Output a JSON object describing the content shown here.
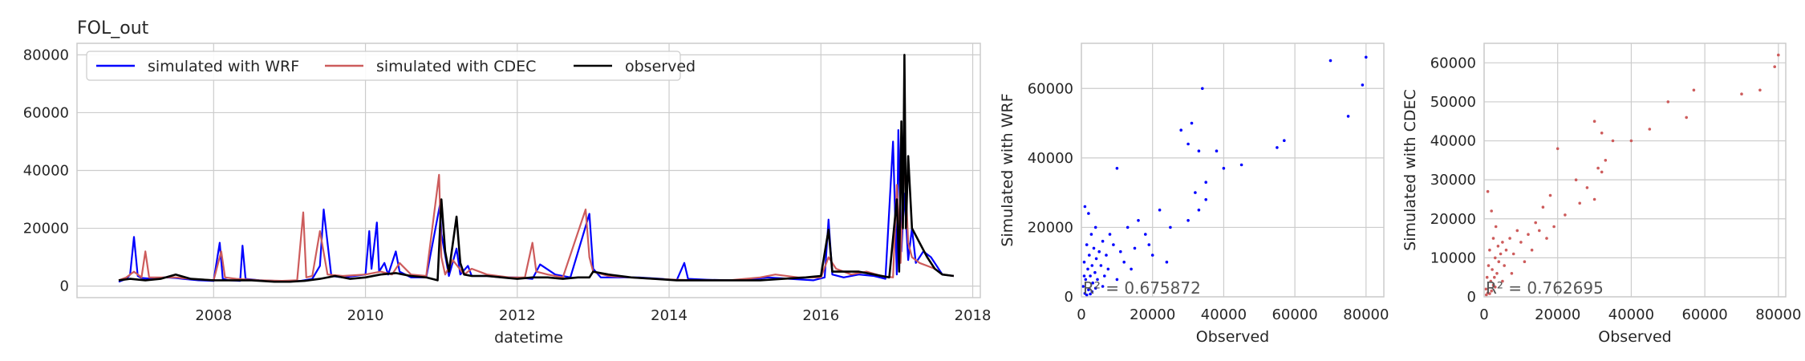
{
  "chart_data": [
    {
      "type": "line",
      "title": "FOL_out",
      "xlabel": "datetime",
      "ylabel": "",
      "xlim": [
        2006.2,
        2018.1
      ],
      "ylim": [
        -4000,
        84000
      ],
      "x_ticks": [
        2008,
        2010,
        2012,
        2014,
        2016,
        2018
      ],
      "x_tick_labels": [
        "2008",
        "2010",
        "2012",
        "2014",
        "2016",
        "2018"
      ],
      "y_ticks": [
        0,
        20000,
        40000,
        60000,
        80000
      ],
      "y_tick_labels": [
        "0",
        "20000",
        "40000",
        "60000",
        "80000"
      ],
      "grid": true,
      "legend_position": "top-left",
      "series": [
        {
          "name": "simulated with WRF",
          "color": "#0000ff",
          "x": [
            2006.75,
            2006.85,
            2006.9,
            2006.95,
            2007.0,
            2007.05,
            2007.2,
            2007.35,
            2007.5,
            2007.6,
            2007.8,
            2008.0,
            2008.08,
            2008.12,
            2008.2,
            2008.35,
            2008.38,
            2008.42,
            2008.6,
            2008.8,
            2009.0,
            2009.15,
            2009.3,
            2009.4,
            2009.45,
            2009.55,
            2009.7,
            2009.85,
            2010.0,
            2010.05,
            2010.08,
            2010.15,
            2010.18,
            2010.25,
            2010.3,
            2010.4,
            2010.45,
            2010.6,
            2010.8,
            2010.98,
            2011.0,
            2011.1,
            2011.2,
            2011.25,
            2011.35,
            2011.4,
            2011.6,
            2011.8,
            2012.0,
            2012.2,
            2012.3,
            2012.5,
            2012.7,
            2012.95,
            2013.0,
            2013.1,
            2013.3,
            2013.6,
            2013.9,
            2014.1,
            2014.2,
            2014.25,
            2014.5,
            2014.8,
            2015.0,
            2015.3,
            2015.6,
            2015.9,
            2016.05,
            2016.1,
            2016.15,
            2016.3,
            2016.5,
            2016.7,
            2016.85,
            2016.95,
            2017.0,
            2017.02,
            2017.06,
            2017.1,
            2017.15,
            2017.2,
            2017.25,
            2017.35,
            2017.45,
            2017.6,
            2017.75
          ],
          "y": [
            1500,
            2500,
            4000,
            17000,
            3500,
            2800,
            2500,
            3000,
            2800,
            2500,
            2000,
            1800,
            15000,
            2500,
            2000,
            1800,
            14000,
            2500,
            2000,
            1800,
            1500,
            1800,
            2500,
            7000,
            26500,
            3500,
            3000,
            3500,
            4000,
            19000,
            6000,
            22000,
            5000,
            8000,
            4000,
            12000,
            5000,
            3000,
            3000,
            28000,
            18000,
            3500,
            13000,
            4000,
            7000,
            3500,
            3500,
            3000,
            3000,
            2500,
            7500,
            4000,
            3000,
            25000,
            6000,
            3000,
            3000,
            3000,
            2500,
            2000,
            8000,
            2500,
            2200,
            2000,
            2000,
            3000,
            2500,
            2000,
            3000,
            23000,
            4000,
            3000,
            4000,
            3500,
            2500,
            50000,
            4000,
            54000,
            12000,
            32000,
            9000,
            20000,
            8000,
            12000,
            10000,
            4000,
            3500
          ]
        },
        {
          "name": "simulated with CDEC",
          "color": "#cd5c5c",
          "x": [
            2006.75,
            2006.85,
            2006.95,
            2007.05,
            2007.1,
            2007.15,
            2007.3,
            2007.5,
            2007.7,
            2008.0,
            2008.1,
            2008.15,
            2008.3,
            2008.6,
            2008.9,
            2009.1,
            2009.18,
            2009.22,
            2009.3,
            2009.4,
            2009.5,
            2009.7,
            2010.0,
            2010.2,
            2010.35,
            2010.45,
            2010.6,
            2010.8,
            2010.97,
            2011.0,
            2011.05,
            2011.15,
            2011.3,
            2011.4,
            2011.6,
            2011.9,
            2012.1,
            2012.2,
            2012.25,
            2012.4,
            2012.6,
            2012.9,
            2012.95,
            2013.0,
            2013.2,
            2013.5,
            2013.8,
            2014.1,
            2014.4,
            2014.8,
            2015.2,
            2015.4,
            2015.7,
            2016.0,
            2016.1,
            2016.2,
            2016.4,
            2016.6,
            2016.8,
            2016.95,
            2017.0,
            2017.05,
            2017.1,
            2017.15,
            2017.2,
            2017.3,
            2017.4,
            2017.5,
            2017.6,
            2017.75
          ],
          "y": [
            2000,
            3000,
            5000,
            3000,
            12000,
            3000,
            3000,
            3000,
            2500,
            2000,
            12000,
            3000,
            2500,
            2000,
            1800,
            2000,
            25500,
            3000,
            3500,
            19000,
            4000,
            3500,
            4000,
            5000,
            4000,
            8000,
            4000,
            3500,
            38500,
            10000,
            4000,
            9000,
            4000,
            6000,
            4000,
            3000,
            3000,
            15000,
            5000,
            4000,
            3000,
            26500,
            10000,
            5000,
            3500,
            3000,
            2500,
            2200,
            2000,
            2000,
            3000,
            4000,
            3000,
            3000,
            10000,
            6000,
            4000,
            5000,
            3500,
            3000,
            35000,
            8000,
            45000,
            15000,
            10000,
            8000,
            7000,
            6000,
            4000,
            3500
          ]
        },
        {
          "name": "observed",
          "color": "#000000",
          "x": [
            2006.75,
            2006.9,
            2007.1,
            2007.3,
            2007.5,
            2007.7,
            2008.0,
            2008.2,
            2008.5,
            2008.8,
            2009.0,
            2009.2,
            2009.4,
            2009.6,
            2009.8,
            2010.0,
            2010.2,
            2010.4,
            2010.6,
            2010.8,
            2010.95,
            2011.0,
            2011.05,
            2011.1,
            2011.2,
            2011.25,
            2011.3,
            2011.4,
            2011.6,
            2011.8,
            2012.0,
            2012.2,
            2012.4,
            2012.6,
            2012.8,
            2012.95,
            2013.0,
            2013.2,
            2013.5,
            2013.8,
            2014.1,
            2014.4,
            2014.8,
            2015.2,
            2015.5,
            2015.8,
            2016.0,
            2016.1,
            2016.15,
            2016.3,
            2016.5,
            2016.7,
            2016.9,
            2017.0,
            2017.03,
            2017.06,
            2017.08,
            2017.1,
            2017.12,
            2017.15,
            2017.2,
            2017.3,
            2017.4,
            2017.5,
            2017.6,
            2017.75
          ],
          "y": [
            2000,
            2500,
            2000,
            2500,
            4000,
            2500,
            2000,
            2000,
            2000,
            1500,
            1500,
            1800,
            2500,
            3500,
            2500,
            3000,
            4000,
            4500,
            3500,
            3000,
            2000,
            30000,
            12000,
            5000,
            24000,
            8000,
            4000,
            3500,
            3500,
            3000,
            2500,
            3000,
            3000,
            2500,
            3000,
            3000,
            5000,
            4000,
            3000,
            2500,
            2000,
            2000,
            2000,
            2000,
            2500,
            3000,
            3500,
            19500,
            5000,
            5000,
            5000,
            4000,
            3000,
            30000,
            5000,
            57000,
            20000,
            80000,
            20000,
            45000,
            20000,
            15000,
            10000,
            6000,
            4000,
            3500
          ]
        }
      ]
    },
    {
      "type": "scatter",
      "xlabel": "Observed",
      "ylabel": "Simulated with WRF",
      "xlim": [
        0,
        85000
      ],
      "ylim": [
        0,
        73000
      ],
      "x_ticks": [
        0,
        20000,
        40000,
        60000,
        80000
      ],
      "x_tick_labels": [
        "0",
        "20000",
        "40000",
        "60000",
        "80000"
      ],
      "y_ticks": [
        0,
        20000,
        40000,
        60000
      ],
      "y_tick_labels": [
        "0",
        "20000",
        "40000",
        "60000"
      ],
      "grid": true,
      "annotation": "R² = 0.675872",
      "series": [
        {
          "color": "#0000ff",
          "x": [
            500,
            800,
            1000,
            1200,
            1500,
            1800,
            2000,
            2200,
            2500,
            2800,
            3000,
            3200,
            3500,
            3800,
            4000,
            4200,
            4500,
            5000,
            5500,
            6000,
            6500,
            7000,
            7500,
            8000,
            9000,
            10000,
            11000,
            12000,
            13000,
            15000,
            16000,
            18000,
            19000,
            20000,
            22000,
            25000,
            28000,
            30000,
            31000,
            32000,
            33000,
            34000,
            35000,
            38000,
            45000,
            55000,
            57000,
            70000,
            75000,
            79000,
            80000,
            1000,
            2000,
            3000,
            1500,
            2500,
            800,
            4000,
            6000,
            10000,
            14000,
            24000,
            30000,
            33000,
            35000,
            40000
          ],
          "y": [
            3000,
            10000,
            26000,
            5000,
            15000,
            8000,
            24000,
            12000,
            6000,
            18000,
            9000,
            4000,
            14000,
            7000,
            20000,
            11000,
            5000,
            13000,
            9000,
            16000,
            6000,
            12000,
            8000,
            18000,
            15000,
            37000,
            13000,
            10000,
            20000,
            14000,
            22000,
            18000,
            15000,
            12000,
            25000,
            20000,
            48000,
            44000,
            50000,
            30000,
            42000,
            60000,
            33000,
            42000,
            38000,
            43000,
            45000,
            68000,
            52000,
            61000,
            69000,
            1000,
            2000,
            1500,
            500,
            800,
            6000,
            2500,
            3000,
            5000,
            8000,
            10000,
            22000,
            25000,
            28000,
            37000
          ]
        }
      ]
    },
    {
      "type": "scatter",
      "xlabel": "Observed",
      "ylabel": "Simulated with CDEC",
      "xlim": [
        0,
        82000
      ],
      "ylim": [
        0,
        65000
      ],
      "x_ticks": [
        0,
        20000,
        40000,
        60000,
        80000
      ],
      "x_tick_labels": [
        "0",
        "20000",
        "40000",
        "60000",
        "80000"
      ],
      "y_ticks": [
        0,
        10000,
        20000,
        30000,
        40000,
        50000,
        60000
      ],
      "y_tick_labels": [
        "0",
        "10000",
        "20000",
        "30000",
        "40000",
        "50000",
        "60000"
      ],
      "grid": true,
      "annotation": "R² = 0.762695",
      "series": [
        {
          "color": "#cd5c5c",
          "x": [
            500,
            800,
            1000,
            1200,
            1500,
            1800,
            2000,
            2200,
            2500,
            2800,
            3000,
            3200,
            3500,
            3800,
            4000,
            4500,
            5000,
            5500,
            6000,
            7000,
            8000,
            9000,
            10000,
            12000,
            14000,
            15000,
            16000,
            18000,
            20000,
            22000,
            25000,
            28000,
            30000,
            31000,
            32000,
            33000,
            35000,
            40000,
            45000,
            50000,
            55000,
            57000,
            70000,
            75000,
            79000,
            80000,
            1000,
            2000,
            3000,
            600,
            1500,
            2500,
            5000,
            7500,
            11000,
            13000,
            17000,
            19000,
            26000,
            30000,
            32000
          ],
          "y": [
            2000,
            5000,
            27000,
            8000,
            12000,
            4000,
            22000,
            7000,
            15000,
            5000,
            10000,
            18000,
            6000,
            13000,
            9000,
            11000,
            14000,
            8000,
            12000,
            15000,
            11000,
            17000,
            14000,
            16000,
            19000,
            17000,
            23000,
            26000,
            38000,
            21000,
            30000,
            28000,
            45000,
            33000,
            42000,
            35000,
            40000,
            40000,
            43000,
            50000,
            46000,
            53000,
            52000,
            53000,
            59000,
            62000,
            1000,
            1500,
            2500,
            500,
            800,
            3000,
            4000,
            6000,
            9000,
            12000,
            15000,
            18000,
            24000,
            25000,
            32000
          ]
        }
      ]
    }
  ]
}
